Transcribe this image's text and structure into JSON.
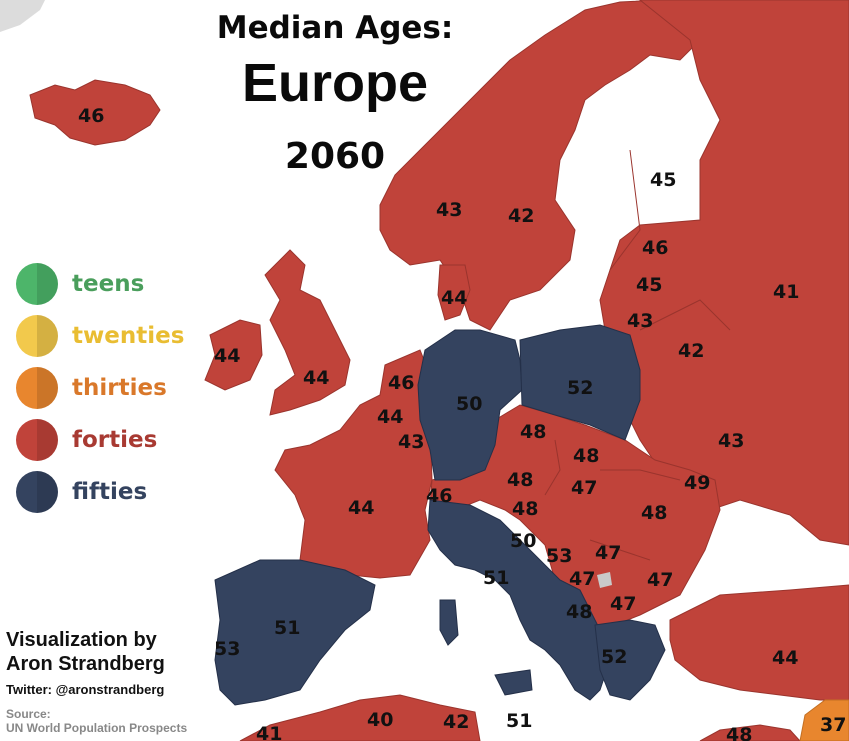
{
  "title": {
    "line1": "Median Ages:",
    "line2": "Europe",
    "line3": "2060"
  },
  "legend": [
    {
      "label": "teens",
      "color": "#4db56a",
      "text_color": "#4a9e5c"
    },
    {
      "label": "twenties",
      "color": "#f2c94c",
      "text_color": "#e9bd32"
    },
    {
      "label": "thirties",
      "color": "#e8862e",
      "text_color": "#d9782a"
    },
    {
      "label": "forties",
      "color": "#c0433a",
      "text_color": "#a83a32"
    },
    {
      "label": "fifties",
      "color": "#34435f",
      "text_color": "#34435f"
    }
  ],
  "credit": {
    "line1": "Visualization by",
    "line2": "Aron Strandberg",
    "twitter": "Twitter: @aronstrandberg",
    "source_label": "Source:",
    "source": "UN World Population Prospects"
  },
  "regions": [
    {
      "name": "Iceland",
      "value": "46"
    },
    {
      "name": "Finland",
      "value": "45"
    },
    {
      "name": "Norway",
      "value": "43"
    },
    {
      "name": "Sweden",
      "value": "42"
    },
    {
      "name": "Estonia",
      "value": "46"
    },
    {
      "name": "Latvia",
      "value": "45"
    },
    {
      "name": "Lithuania",
      "value": "43"
    },
    {
      "name": "Russia",
      "value": "41"
    },
    {
      "name": "Belarus",
      "value": "42"
    },
    {
      "name": "Ukraine",
      "value": "43"
    },
    {
      "name": "Denmark",
      "value": "44"
    },
    {
      "name": "Ireland",
      "value": "44"
    },
    {
      "name": "United Kingdom",
      "value": "44"
    },
    {
      "name": "Netherlands",
      "value": "46"
    },
    {
      "name": "Belgium",
      "value": "44"
    },
    {
      "name": "Luxembourg",
      "value": "43"
    },
    {
      "name": "Germany",
      "value": "50"
    },
    {
      "name": "Poland",
      "value": "52"
    },
    {
      "name": "Czechia",
      "value": "48"
    },
    {
      "name": "Slovakia",
      "value": "48"
    },
    {
      "name": "Austria",
      "value": "48"
    },
    {
      "name": "Hungary",
      "value": "47"
    },
    {
      "name": "Moldova",
      "value": "49"
    },
    {
      "name": "Romania",
      "value": "48"
    },
    {
      "name": "Switzerland",
      "value": "46"
    },
    {
      "name": "Slovenia",
      "value": "48"
    },
    {
      "name": "Croatia",
      "value": "50"
    },
    {
      "name": "Bosnia",
      "value": "53"
    },
    {
      "name": "Serbia",
      "value": "47"
    },
    {
      "name": "Bulgaria",
      "value": "47"
    },
    {
      "name": "Montenegro",
      "value": "47"
    },
    {
      "name": "Albania",
      "value": "48"
    },
    {
      "name": "North Macedonia",
      "value": "47"
    },
    {
      "name": "Greece",
      "value": "52"
    },
    {
      "name": "Turkey",
      "value": "44"
    },
    {
      "name": "France",
      "value": "44"
    },
    {
      "name": "Italy",
      "value": "51"
    },
    {
      "name": "Spain",
      "value": "51"
    },
    {
      "name": "Portugal",
      "value": "53"
    },
    {
      "name": "Morocco",
      "value": "41"
    },
    {
      "name": "Algeria",
      "value": "40"
    },
    {
      "name": "Tunisia",
      "value": "42"
    },
    {
      "name": "Malta",
      "value": "51"
    },
    {
      "name": "Syria",
      "value": "48"
    },
    {
      "name": "Iraq",
      "value": "37"
    }
  ]
}
